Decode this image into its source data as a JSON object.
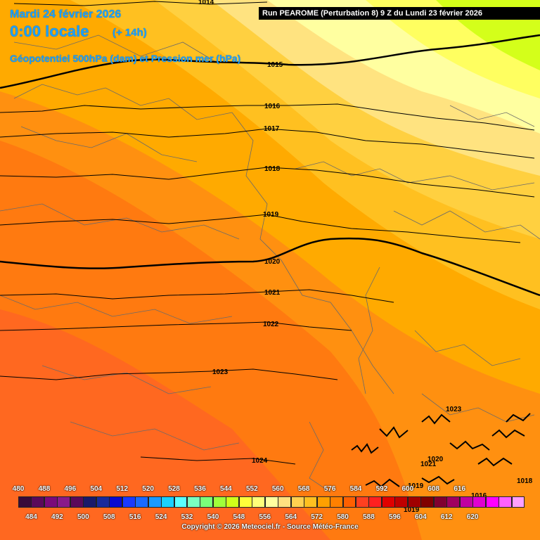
{
  "header": {
    "date": "Mardi 24 février 2026",
    "time": "0:00 locale",
    "lead": "(+ 14h)",
    "parameter": "Géopotentiel 500hPa (dam) et Pression mer (hPa)"
  },
  "run_banner": "Run PEAROME (Perturbation 8) 9 Z du Lundi 23 février 2026",
  "copyright": "Copyright © 2026 Meteociel.fr - Source Météo-France",
  "isobars": [
    {
      "value": "1014",
      "label": "1014"
    },
    {
      "value": "1015",
      "label": "1015"
    },
    {
      "value": "1016",
      "label": "1016"
    },
    {
      "value": "1017",
      "label": "1017"
    },
    {
      "value": "1018",
      "label": "1018"
    },
    {
      "value": "1019",
      "label": "1019"
    },
    {
      "value": "1020",
      "label": "1020"
    },
    {
      "value": "1021",
      "label": "1021"
    },
    {
      "value": "1022",
      "label": "1022"
    },
    {
      "value": "1023",
      "label": "1023"
    },
    {
      "value": "1024",
      "label": "1024"
    }
  ],
  "extra_labels": [
    "1023",
    "1020",
    "1021",
    "1019",
    "1018",
    "1016",
    "1019"
  ],
  "color_scale": {
    "upper_labels": [
      "480",
      "488",
      "496",
      "504",
      "512",
      "520",
      "528",
      "536",
      "544",
      "552",
      "560",
      "568",
      "576",
      "584",
      "592",
      "600",
      "608",
      "616"
    ],
    "lower_labels": [
      "484",
      "492",
      "500",
      "508",
      "516",
      "524",
      "532",
      "540",
      "548",
      "556",
      "564",
      "572",
      "580",
      "588",
      "596",
      "604",
      "612",
      "620"
    ],
    "colors": [
      "#3a0a3a",
      "#5a0a5a",
      "#7a0a7a",
      "#8a1a8a",
      "#5a0a5a",
      "#1a1a6a",
      "#1a2a9a",
      "#0a0ad0",
      "#1a3aff",
      "#1a6aff",
      "#1a9aff",
      "#1ad0ff",
      "#5affff",
      "#7affc0",
      "#7aff7a",
      "#a0ff3a",
      "#d0ff1a",
      "#ffff3a",
      "#ffff7a",
      "#ffffa0",
      "#ffe080",
      "#ffd050",
      "#ffc020",
      "#ffa000",
      "#ff8000",
      "#ff6000",
      "#ff4020",
      "#ff2020",
      "#e00000",
      "#c00000",
      "#a00000",
      "#800000",
      "#800030",
      "#a00060",
      "#c000a0",
      "#e000d0",
      "#ff00ff",
      "#ff60ff",
      "#ffa0ff"
    ]
  },
  "field_colors": {
    "band_1": "#d4ff1a",
    "band_2": "#ffff60",
    "band_3": "#ffffa0",
    "band_4": "#ffe380",
    "band_5": "#ffd040",
    "band_6": "#ffc020",
    "band_7": "#ffaa00",
    "band_8": "#ff9010",
    "band_9": "#ff7a10",
    "band_10": "#ff6820"
  }
}
